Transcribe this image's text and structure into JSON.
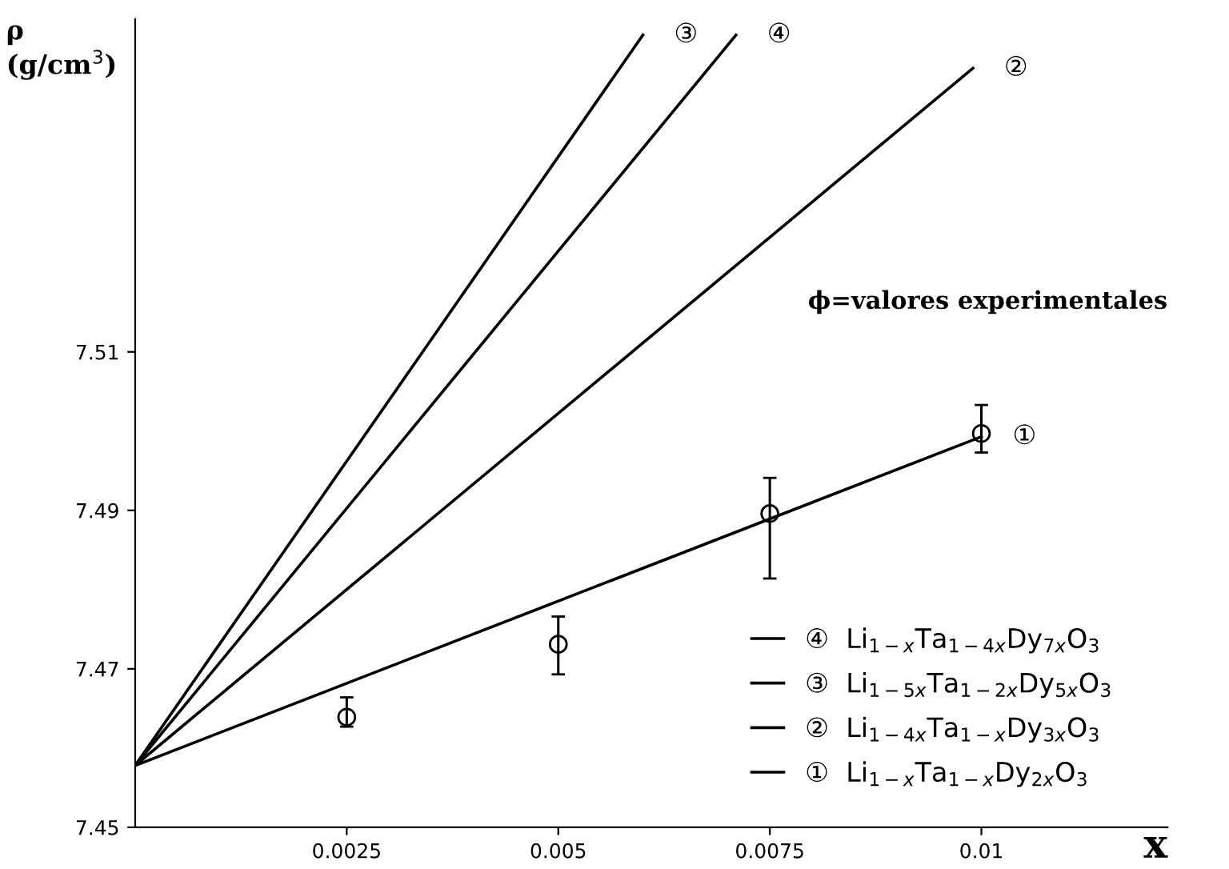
{
  "chart_data": {
    "type": "line",
    "xlabel": "x",
    "ylabel": "ρ\n(g/cm$^{3}$)",
    "xlim": [
      0,
      0.0122
    ],
    "ylim": [
      7.45,
      7.552
    ],
    "xticks": [
      0.0025,
      0.005,
      0.0075,
      0.01
    ],
    "yticks": [
      7.45,
      7.47,
      7.49,
      7.51
    ],
    "grid": false,
    "legend": "bottom right",
    "marker": "none",
    "line_style": "solid",
    "series": [
      {
        "name": "④  Li$_{1−x}$Ta$_{1−4x}$Dy$_{7x}$O$_{3}$",
        "color": "#000000",
        "x": [
          0,
          0.0071
        ],
        "values": [
          7.4578,
          7.55
        ]
      },
      {
        "name": "③  Li$_{1−5x}$Ta$_{1−2x}$Dy$_{5x}$O$_{3}$",
        "color": "#000000",
        "x": [
          0,
          0.006
        ],
        "values": [
          7.4578,
          7.55
        ]
      },
      {
        "name": "②  Li$_{1−4x}$Ta$_{1−x}$Dy$_{3x}$O$_{3}$",
        "color": "#000000",
        "x": [
          0,
          0.0099
        ],
        "values": [
          7.4578,
          7.5458
        ]
      },
      {
        "name": "①  Li$_{1−x}$Ta$_{1−x}$Dy$_{2x}$O$_{3}$",
        "color": "#000000",
        "x": [
          0,
          0.01
        ],
        "values": [
          7.4578,
          7.4993
        ]
      },
      {
        "type": "scatter",
        "marker": "circle",
        "color": "#000000",
        "x": [
          0.0025,
          0.005,
          0.0075,
          0.01
        ],
        "values": [
          7.4639,
          7.4731,
          7.4896,
          7.4997
        ],
        "errors": [
          [
            7.4627,
            7.4664
          ],
          [
            7.4693,
            7.4766
          ],
          [
            7.4814,
            7.4941
          ],
          [
            7.4973,
            7.5033
          ]
        ]
      }
    ],
    "annotations": [
      {
        "text": "③",
        "x": 0.006,
        "y": 7.55
      },
      {
        "text": "④",
        "x": 0.0071,
        "y": 7.55
      },
      {
        "text": "②",
        "x": 0.0099,
        "y": 7.5458
      },
      {
        "text": "①",
        "x": 0.01,
        "y": 7.4993
      },
      "ϕ=valores experimentales"
    ]
  }
}
